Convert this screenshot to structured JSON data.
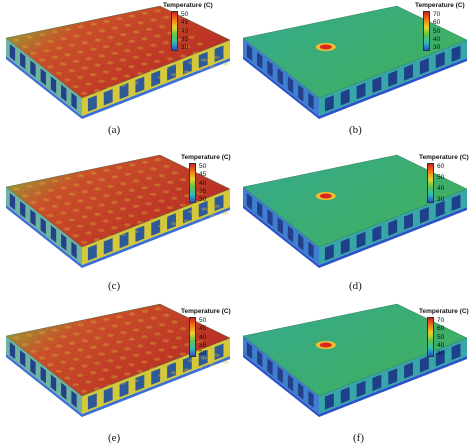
{
  "panels": [
    {
      "id": "a",
      "caption": "(a)",
      "legend_title": "Temperature (C)",
      "ticks": [
        "50",
        "45",
        "40",
        "35",
        "30"
      ],
      "scheme": "warm",
      "hotspot": false,
      "colors": {
        "top": "#c6402a",
        "edge": "#7fbf3a",
        "mid": "#d4c93a",
        "low": "#3b6fd6"
      }
    },
    {
      "id": "b",
      "caption": "(b)",
      "legend_title": "Temperature (C)",
      "ticks": [
        "70",
        "60",
        "50",
        "40",
        "30"
      ],
      "scheme": "cool",
      "hotspot": true,
      "colors": {
        "top": "#3cab66",
        "edge": "#36a6a8",
        "mid": "#2fa89a",
        "low": "#2b53c9"
      }
    },
    {
      "id": "c",
      "caption": "(c)",
      "legend_title": "Temperature (C)",
      "ticks": [
        "50",
        "45",
        "40",
        "35",
        "30"
      ],
      "scheme": "warm",
      "hotspot": false,
      "colors": {
        "top": "#c6402a",
        "edge": "#7fbf3a",
        "mid": "#d4c93a",
        "low": "#3b6fd6"
      }
    },
    {
      "id": "d",
      "caption": "(d)",
      "legend_title": "Temperature (C)",
      "ticks": [
        "60",
        "50",
        "40",
        "30"
      ],
      "scheme": "cool",
      "hotspot": true,
      "colors": {
        "top": "#3cab66",
        "edge": "#36a6a8",
        "mid": "#2fa89a",
        "low": "#2b53c9"
      }
    },
    {
      "id": "e",
      "caption": "(e)",
      "legend_title": "Temperature (C)",
      "ticks": [
        "50",
        "45",
        "40",
        "35",
        "30"
      ],
      "scheme": "warm",
      "hotspot": false,
      "colors": {
        "top": "#c6402a",
        "edge": "#7fbf3a",
        "mid": "#d4c93a",
        "low": "#3b6fd6"
      }
    },
    {
      "id": "f",
      "caption": "(f)",
      "legend_title": "Temperature (C)",
      "ticks": [
        "70",
        "60",
        "50",
        "40",
        "30"
      ],
      "scheme": "cool",
      "hotspot": true,
      "colors": {
        "top": "#3cab66",
        "edge": "#36a6a8",
        "mid": "#2fa89a",
        "low": "#2b53c9"
      }
    }
  ],
  "colorbar": {
    "warm": [
      "#d21f1f",
      "#f07a18",
      "#e8d22a",
      "#64c24a",
      "#2ec0b8",
      "#2b4fd0"
    ],
    "cool": [
      "#d21f1f",
      "#f07a18",
      "#e8d22a",
      "#64c24a",
      "#2ec0b8",
      "#2b4fd0"
    ]
  }
}
